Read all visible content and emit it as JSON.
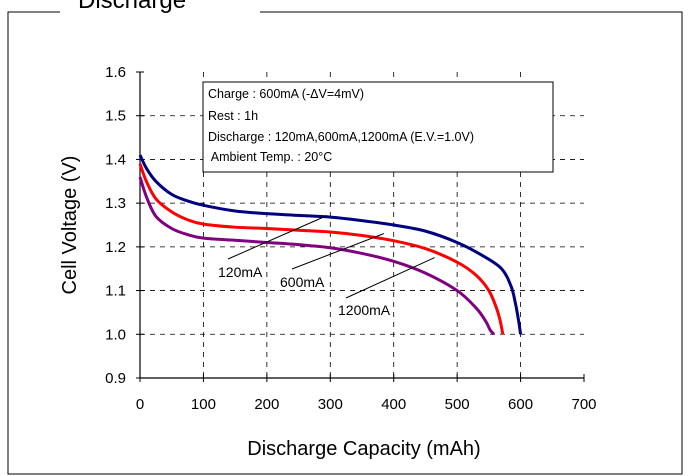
{
  "page": {
    "title": "Discharge"
  },
  "chart_data": {
    "type": "line",
    "title": "",
    "xlabel": "Discharge Capacity (mAh)",
    "ylabel": "Cell Voltage (V)",
    "xlim": [
      0,
      700
    ],
    "ylim": [
      0.9,
      1.6
    ],
    "xticks": [
      0,
      100,
      200,
      300,
      400,
      500,
      600,
      700
    ],
    "yticks": [
      0.9,
      1.0,
      1.1,
      1.2,
      1.3,
      1.4,
      1.5,
      1.6
    ],
    "xtick_labels": [
      "0",
      "100",
      "200",
      "300",
      "400",
      "500",
      "600",
      "700"
    ],
    "ytick_labels": [
      "0.9",
      "1.0",
      "1.1",
      "1.2",
      "1.3",
      "1.4",
      "1.5",
      "1.6"
    ],
    "grid": "dashed",
    "conditions_box": {
      "lines": [
        "Charge : 600mA (-ΔV=4mV)",
        "Rest : 1h",
        "Discharge : 120mA,600mA,1200mA (E.V.=1.0V)",
        " Ambient Temp. : 20°C"
      ]
    },
    "series": [
      {
        "name": "120mA",
        "color": "#000080",
        "points": [
          [
            0,
            1.41
          ],
          [
            10,
            1.38
          ],
          [
            25,
            1.35
          ],
          [
            50,
            1.32
          ],
          [
            75,
            1.305
          ],
          [
            100,
            1.295
          ],
          [
            150,
            1.282
          ],
          [
            200,
            1.276
          ],
          [
            250,
            1.272
          ],
          [
            300,
            1.268
          ],
          [
            350,
            1.26
          ],
          [
            400,
            1.25
          ],
          [
            450,
            1.236
          ],
          [
            500,
            1.21
          ],
          [
            540,
            1.18
          ],
          [
            570,
            1.15
          ],
          [
            585,
            1.11
          ],
          [
            592,
            1.07
          ],
          [
            597,
            1.03
          ],
          [
            600,
            1.0
          ]
        ]
      },
      {
        "name": "600mA",
        "color": "#ff0000",
        "points": [
          [
            0,
            1.39
          ],
          [
            10,
            1.35
          ],
          [
            25,
            1.31
          ],
          [
            50,
            1.28
          ],
          [
            75,
            1.262
          ],
          [
            100,
            1.252
          ],
          [
            150,
            1.245
          ],
          [
            200,
            1.242
          ],
          [
            250,
            1.238
          ],
          [
            300,
            1.234
          ],
          [
            350,
            1.226
          ],
          [
            400,
            1.214
          ],
          [
            450,
            1.196
          ],
          [
            500,
            1.165
          ],
          [
            530,
            1.135
          ],
          [
            550,
            1.1
          ],
          [
            562,
            1.06
          ],
          [
            568,
            1.03
          ],
          [
            572,
            1.0
          ]
        ]
      },
      {
        "name": "1200mA",
        "color": "#800080",
        "points": [
          [
            0,
            1.36
          ],
          [
            10,
            1.315
          ],
          [
            25,
            1.27
          ],
          [
            50,
            1.242
          ],
          [
            75,
            1.228
          ],
          [
            100,
            1.22
          ],
          [
            150,
            1.215
          ],
          [
            200,
            1.21
          ],
          [
            250,
            1.205
          ],
          [
            300,
            1.198
          ],
          [
            350,
            1.185
          ],
          [
            400,
            1.167
          ],
          [
            450,
            1.14
          ],
          [
            500,
            1.1
          ],
          [
            530,
            1.06
          ],
          [
            545,
            1.03
          ],
          [
            552,
            1.01
          ],
          [
            558,
            1.0
          ]
        ]
      }
    ]
  }
}
